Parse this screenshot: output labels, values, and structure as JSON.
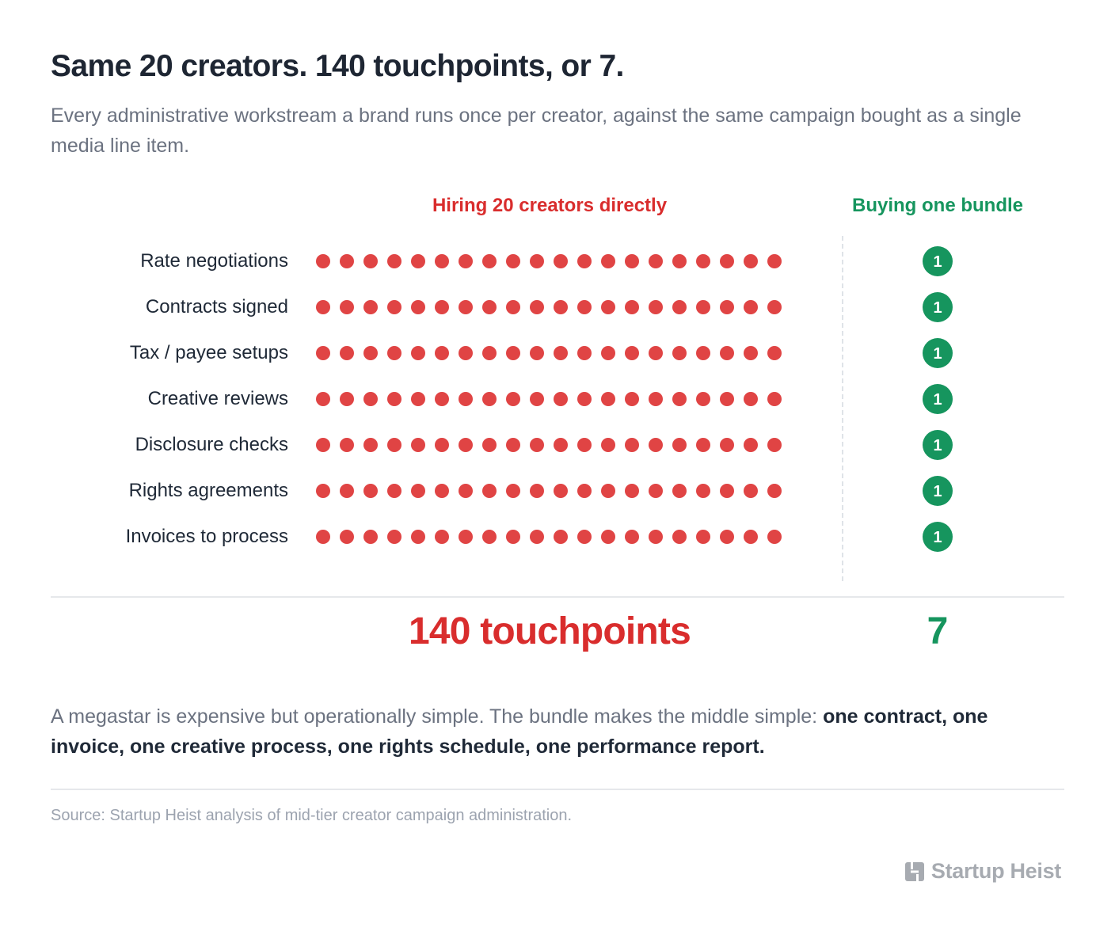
{
  "title": "Same 20 creators. 140 touchpoints, or 7.",
  "subtitle": "Every administrative workstream a brand runs once per creator, against the same campaign bought as a single media line item.",
  "colors": {
    "direct": "#e04444",
    "bundle": "#16955e",
    "direct_text": "#d92d2d",
    "muted": "#6b7280"
  },
  "chart_data": {
    "type": "table",
    "columns": [
      "Hiring 20 creators directly",
      "Buying one bundle"
    ],
    "rows": [
      {
        "label": "Rate negotiations",
        "direct": 20,
        "bundle": 1
      },
      {
        "label": "Contracts signed",
        "direct": 20,
        "bundle": 1
      },
      {
        "label": "Tax / payee setups",
        "direct": 20,
        "bundle": 1
      },
      {
        "label": "Creative reviews",
        "direct": 20,
        "bundle": 1
      },
      {
        "label": "Disclosure checks",
        "direct": 20,
        "bundle": 1
      },
      {
        "label": "Rights agreements",
        "direct": 20,
        "bundle": 1
      },
      {
        "label": "Invoices to process",
        "direct": 20,
        "bundle": 1
      }
    ],
    "bundle_marker_label": "1",
    "totals": {
      "direct": "140 touchpoints",
      "bundle": "7"
    }
  },
  "note": {
    "plain": "A megastar is expensive but operationally simple. The bundle makes the middle simple: ",
    "bold": "one contract, one invoice, one creative process, one rights schedule, one performance report."
  },
  "source": "Source: Startup Heist analysis of mid-tier creator campaign administration.",
  "brand": {
    "name": "Startup Heist",
    "icon": "startup-heist-logo-icon"
  }
}
